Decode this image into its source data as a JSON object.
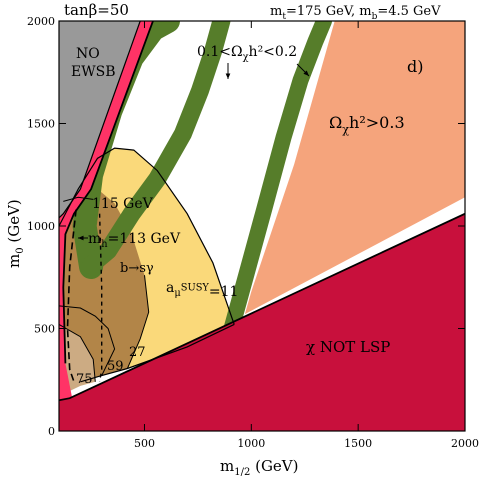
{
  "chart_data": {
    "type": "area",
    "title_left": "tanβ=50",
    "title_right": "m_t=175 GeV, m_b=4.5 GeV",
    "panel_label": "d)",
    "xlabel": "m_{1/2} (GeV)",
    "ylabel": "m_0 (GeV)",
    "xlim": [
      100,
      2000
    ],
    "ylim": [
      0,
      2000
    ],
    "xticks": [
      500,
      1000,
      1500,
      2000
    ],
    "yticks": [
      0,
      500,
      1000,
      1500,
      2000
    ],
    "regions": [
      {
        "name": "NO EWSB",
        "label": "NO\nEWSB",
        "color": "#999999",
        "points": [
          [
            100,
            2000
          ],
          [
            480,
            2000
          ],
          [
            200,
            1180
          ],
          [
            120,
            1060
          ],
          [
            100,
            1040
          ]
        ]
      },
      {
        "name": "chi not LSP",
        "label": "χ NOT LSP",
        "color": "#c8103c",
        "points": [
          [
            100,
            0
          ],
          [
            2000,
            0
          ],
          [
            2000,
            1060
          ],
          [
            150,
            160
          ],
          [
            100,
            150
          ]
        ]
      },
      {
        "name": "relic density 0.1-0.2",
        "label": "0.1<Ω_χh²<0.2",
        "color": "#567d2a"
      },
      {
        "name": "relic density > 0.3",
        "label": "Ω_χh²>0.3",
        "color": "#f5a47c",
        "points": [
          [
            1390,
            2000
          ],
          [
            2000,
            2000
          ],
          [
            2000,
            1140
          ],
          [
            970,
            570
          ],
          [
            1000,
            680
          ],
          [
            1200,
            1300
          ]
        ]
      },
      {
        "name": "g-2 region",
        "label": "a_μ^SUSY=11",
        "color": "#fad97a"
      },
      {
        "name": "b to s gamma",
        "label": "b→sγ",
        "color": "#b28548"
      },
      {
        "name": "stau LSP strip",
        "color": "#ff3366"
      }
    ],
    "contour_labels": [
      "115 GeV",
      "m_h=113 GeV",
      "75",
      "59",
      "27",
      "11"
    ],
    "annotations": [
      "0.1<Ω_χh²<0.2",
      "Ω_χh²>0.3",
      "a_μ^SUSY=11",
      "b→sγ",
      "χ NOT LSP",
      "NO EWSB",
      "d)"
    ]
  }
}
